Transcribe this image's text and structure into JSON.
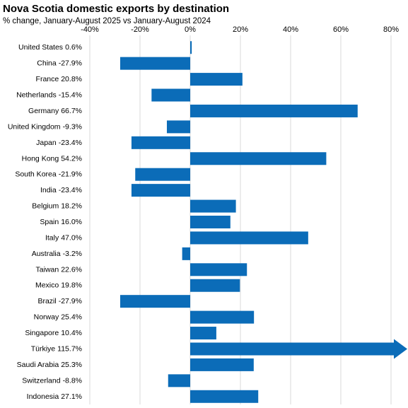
{
  "chart_data": {
    "type": "bar",
    "orientation": "horizontal",
    "title": "Nova Scotia domestic exports by destination",
    "subtitle": "% change, January-August 2025 vs January-August 2024",
    "categories": [
      "United States",
      "China",
      "France",
      "Netherlands",
      "Germany",
      "United Kingdom",
      "Japan",
      "Hong Kong",
      "South Korea",
      "India",
      "Belgium",
      "Spain",
      "Italy",
      "Australia",
      "Taiwan",
      "Mexico",
      "Brazil",
      "Norway",
      "Singapore",
      "Türkiye",
      "Saudi Arabia",
      "Switzerland",
      "Indonesia"
    ],
    "values": [
      0.6,
      -27.9,
      20.8,
      -15.4,
      66.7,
      -9.3,
      -23.4,
      54.2,
      -21.9,
      -23.4,
      18.2,
      16.0,
      47.0,
      -3.2,
      22.6,
      19.8,
      -27.9,
      25.4,
      10.4,
      115.7,
      25.3,
      -8.8,
      27.1
    ],
    "value_labels": [
      "0.6%",
      "-27.9%",
      "20.8%",
      "-15.4%",
      "66.7%",
      "-9.3%",
      "-23.4%",
      "54.2%",
      "-21.9%",
      "-23.4%",
      "18.2%",
      "16.0%",
      "47.0%",
      "-3.2%",
      "22.6%",
      "19.8%",
      "-27.9%",
      "25.4%",
      "10.4%",
      "115.7%",
      "25.3%",
      "-8.8%",
      "27.1%"
    ],
    "color": "#0b6cb8",
    "xlim": [
      -40,
      80
    ],
    "xticks": [
      {
        "value": -40,
        "label": "-40%"
      },
      {
        "value": -20,
        "label": "-20%"
      },
      {
        "value": 0,
        "label": "0%"
      },
      {
        "value": 20,
        "label": "20%"
      },
      {
        "value": 40,
        "label": "40%"
      },
      {
        "value": 60,
        "label": "60%"
      },
      {
        "value": 80,
        "label": "80%"
      }
    ],
    "grid": true
  }
}
